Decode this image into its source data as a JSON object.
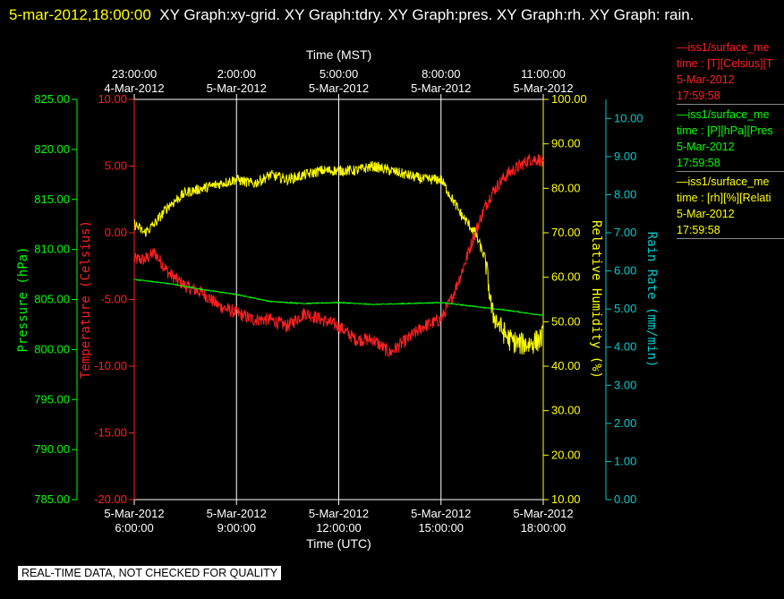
{
  "title": {
    "timestamp": "5-mar-2012,18:00:00",
    "text": "XY Graph:xy-grid.  XY Graph:tdry.  XY Graph:pres.  XY Graph:rh.  XY Graph: rain."
  },
  "legend": [
    {
      "name": "—iss1/surface_me",
      "line2": "time : [T][Celsius][T",
      "date": "5-Mar-2012",
      "time": "17:59:58",
      "color": "#ff2020"
    },
    {
      "name": "—iss1/surface_me",
      "line2": "time : [P][hPa][Pres",
      "date": "5-Mar-2012",
      "time": "17:59:58",
      "color": "#00ff00"
    },
    {
      "name": "—iss1/surface_me",
      "line2": "time : [rh][%][Relati",
      "date": "5-Mar-2012",
      "time": "17:59:58",
      "color": "#ffff00"
    }
  ],
  "badge": "REAL-TIME DATA, NOT CHECKED FOR QUALITY",
  "chart_data": {
    "type": "line",
    "x_bottom": {
      "label": "Time (UTC)",
      "range_hours": [
        6,
        18
      ],
      "ticks": [
        {
          "h": 6,
          "date": "5-Mar-2012",
          "time": "6:00:00"
        },
        {
          "h": 9,
          "date": "5-Mar-2012",
          "time": "9:00:00"
        },
        {
          "h": 12,
          "date": "5-Mar-2012",
          "time": "12:00:00"
        },
        {
          "h": 15,
          "date": "5-Mar-2012",
          "time": "15:00:00"
        },
        {
          "h": 18,
          "date": "5-Mar-2012",
          "time": "18:00:00"
        }
      ]
    },
    "x_top": {
      "label": "Time (MST)",
      "ticks": [
        {
          "h": 6,
          "time": "23:00:00",
          "date": "4-Mar-2012"
        },
        {
          "h": 9,
          "time": "2:00:00",
          "date": "5-Mar-2012"
        },
        {
          "h": 12,
          "time": "5:00:00",
          "date": "5-Mar-2012"
        },
        {
          "h": 15,
          "time": "8:00:00",
          "date": "5-Mar-2012"
        },
        {
          "h": 18,
          "time": "11:00:00",
          "date": "5-Mar-2012"
        }
      ]
    },
    "grid": true,
    "axes": {
      "pressure": {
        "label": "Pressure (hPa)",
        "range": [
          785,
          825
        ],
        "ticks": [
          "785.00",
          "790.00",
          "795.00",
          "800.00",
          "805.00",
          "810.00",
          "815.00",
          "820.00",
          "825.00"
        ],
        "color": "#00ff00"
      },
      "temperature": {
        "label": "Temperature (Celsius)",
        "range": [
          -20,
          10
        ],
        "ticks": [
          "-20.00",
          "-15.00",
          "-10.00",
          "-5.00",
          "0.00",
          "5.00",
          "10.00"
        ],
        "color": "#ff2020"
      },
      "rh": {
        "label": "Relative Humidity (%)",
        "range": [
          10,
          100
        ],
        "ticks": [
          "10.00",
          "20.00",
          "30.00",
          "40.00",
          "50.00",
          "60.00",
          "70.00",
          "80.00",
          "90.00",
          "100.00"
        ],
        "color": "#ffff00"
      },
      "rain": {
        "label": "Rain Rate (mm/min)",
        "range": [
          0,
          10.5
        ],
        "ticks": [
          "0.00",
          "1.00",
          "2.00",
          "3.00",
          "4.00",
          "5.00",
          "6.00",
          "7.00",
          "8.00",
          "9.00",
          "10.00"
        ],
        "color": "#00cccc"
      }
    },
    "series": [
      {
        "name": "Temperature",
        "axis": "temperature",
        "color": "#ff2020",
        "x": [
          6.0,
          6.3,
          6.6,
          7.0,
          7.5,
          8.0,
          8.5,
          9.0,
          9.5,
          10.0,
          10.5,
          11.0,
          11.5,
          12.0,
          12.5,
          13.0,
          13.5,
          14.0,
          14.5,
          15.0,
          15.3,
          15.6,
          16.0,
          16.3,
          16.5,
          16.8,
          17.0,
          17.3,
          17.6,
          17.9,
          18.0
        ],
        "y": [
          -2.0,
          -2.0,
          -1.5,
          -3.0,
          -4.0,
          -4.5,
          -5.5,
          -6.0,
          -6.5,
          -6.5,
          -7.0,
          -6.0,
          -6.5,
          -7.0,
          -8.0,
          -8.0,
          -9.0,
          -8.0,
          -7.0,
          -6.5,
          -5.0,
          -3.0,
          0.0,
          2.0,
          3.0,
          4.0,
          4.5,
          5.0,
          5.5,
          5.5,
          5.0
        ],
        "noise": 0.5
      },
      {
        "name": "Pressure",
        "axis": "pressure",
        "color": "#00ff00",
        "x": [
          6.0,
          7.0,
          8.0,
          9.0,
          10.0,
          11.0,
          12.0,
          13.0,
          14.0,
          15.0,
          16.0,
          17.0,
          18.0
        ],
        "y": [
          807.0,
          806.6,
          806.0,
          805.5,
          804.8,
          804.6,
          804.7,
          804.5,
          804.6,
          804.7,
          804.3,
          803.9,
          803.4
        ],
        "noise": 0.05
      },
      {
        "name": "Relative Humidity",
        "axis": "rh",
        "color": "#ffff00",
        "x": [
          6.0,
          6.3,
          6.6,
          7.0,
          7.5,
          8.0,
          8.5,
          9.0,
          9.5,
          10.0,
          10.5,
          11.0,
          11.5,
          12.0,
          12.5,
          13.0,
          13.5,
          14.0,
          14.5,
          15.0,
          15.3,
          15.6,
          16.0,
          16.3,
          16.5,
          16.8,
          17.0,
          17.3,
          17.6,
          17.9,
          18.0
        ],
        "y": [
          72.0,
          70.0,
          72.0,
          76.0,
          79.0,
          80.0,
          81.0,
          82.0,
          81.0,
          83.0,
          82.0,
          83.0,
          84.0,
          84.0,
          84.0,
          85.0,
          84.0,
          83.0,
          82.0,
          82.0,
          78.0,
          74.0,
          70.0,
          64.0,
          52.0,
          48.0,
          46.0,
          45.0,
          45.0,
          46.0,
          47.0
        ],
        "noise": 1.2
      }
    ]
  }
}
